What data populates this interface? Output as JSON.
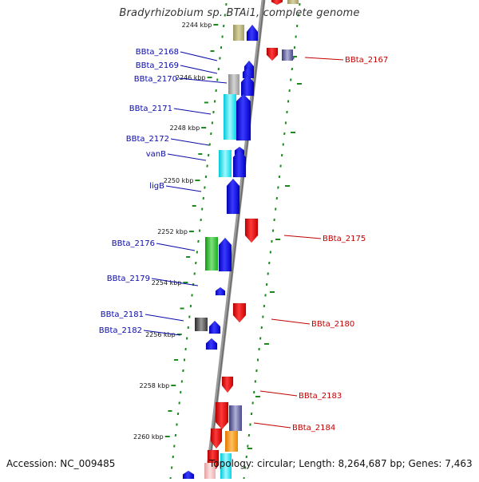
{
  "title": "Bradyrhizobium sp. BTAi1, complete genome",
  "footer": {
    "accession": "Accession: NC_009485",
    "summary": "Topology: circular; Length: 8,264,687 bp; Genes: 7,463"
  },
  "colors": {
    "backbone": "#8a8a8a",
    "tick": "#1c8a1c",
    "forward_gene": "#1010e0",
    "reverse_gene": "#e01010",
    "forward_label": "#0a0aa8",
    "reverse_label": "#c00000"
  },
  "ruler": [
    {
      "label": "2244 kbp"
    },
    {
      "label": "2246 kbp"
    },
    {
      "label": "2248 kbp"
    },
    {
      "label": "2250 kbp"
    },
    {
      "label": "2252 kbp"
    },
    {
      "label": "2254 kbp"
    },
    {
      "label": "2256 kbp"
    },
    {
      "label": "2258 kbp"
    },
    {
      "label": "2260 kbp"
    }
  ],
  "forward_labels": [
    {
      "text": "BBta_2168"
    },
    {
      "text": "BBta_2169"
    },
    {
      "text": "BBta_2170"
    },
    {
      "text": "BBta_2171"
    },
    {
      "text": "BBta_2172"
    },
    {
      "text": "vanB"
    },
    {
      "text": "ligB"
    },
    {
      "text": "BBta_2176"
    },
    {
      "text": "BBta_2179"
    },
    {
      "text": "BBta_2181"
    },
    {
      "text": "BBta_2182"
    }
  ],
  "reverse_labels": [
    {
      "text": "BBta_2167"
    },
    {
      "text": "BBta_2175"
    },
    {
      "text": "BBta_2180"
    },
    {
      "text": "BBta_2183"
    },
    {
      "text": "BBta_2184"
    }
  ]
}
